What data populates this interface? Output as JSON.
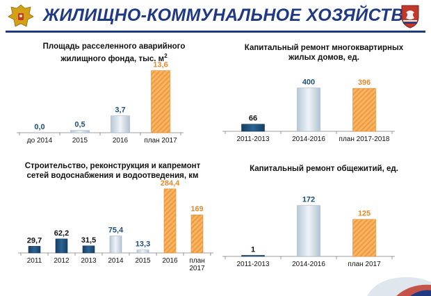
{
  "header": {
    "title": "ЖИЛИЩНО-КОММУНАЛЬНОЕ ХОЗЯЙСТВО"
  },
  "colors": {
    "navy": "#1f3a82",
    "dark_blue": "#1d4f7a",
    "light_blue": "#cdd9e3",
    "orange": "#f5a24a"
  },
  "icons": {
    "left": "russian-coat-of-arms-icon",
    "right": "crimea-coat-of-arms-icon"
  },
  "chart_data": [
    {
      "type": "bar",
      "title": "Площадь расселенного аварийного жилищного фонда, тыс. м²",
      "title_lines": [
        "Площадь расселенного аварийного",
        "жилищного фонда, тыс. м"
      ],
      "title_sup": "2",
      "categories": [
        "до 2014",
        "2015",
        "2016",
        "план 2017"
      ],
      "values": [
        0.0,
        0.5,
        3.7,
        13.6
      ],
      "value_labels": [
        "0,0",
        "0,5",
        "3,7",
        "13,6"
      ],
      "bar_colors": [
        "light",
        "light",
        "light",
        "orange"
      ],
      "ylim": [
        0,
        14
      ]
    },
    {
      "type": "bar",
      "title": "Капитальный ремонт многоквартирных жилых домов, ед.",
      "title_lines": [
        "Капитальный ремонт многоквартирных",
        "жилых домов, ед."
      ],
      "categories": [
        "2011-2013",
        "2014-2016",
        "план 2017-2018"
      ],
      "values": [
        66,
        400,
        396
      ],
      "value_labels": [
        "66",
        "400",
        "396"
      ],
      "bar_colors": [
        "dark",
        "light",
        "orange"
      ],
      "ylim": [
        0,
        410
      ]
    },
    {
      "type": "bar",
      "title": "Строительство, реконструкция и капремонт сетей водоснабжения и водоотведения, км",
      "title_lines": [
        "Строительство, реконструкция и капремонт",
        "сетей водоснабжения и водоотведения, км"
      ],
      "categories": [
        "2011",
        "2012",
        "2013",
        "2014",
        "2015",
        "2016",
        "план 2017"
      ],
      "category_lines": [
        [
          "2011"
        ],
        [
          "2012"
        ],
        [
          "2013"
        ],
        [
          "2014"
        ],
        [
          "2015"
        ],
        [
          "2016"
        ],
        [
          "план",
          "2017"
        ]
      ],
      "values": [
        29.7,
        62.2,
        31.5,
        75.4,
        13.3,
        284.4,
        169
      ],
      "value_labels": [
        "29,7",
        "62,2",
        "31,5",
        "75,4",
        "13,3",
        "284,4",
        "169"
      ],
      "bar_colors": [
        "dark",
        "dark",
        "dark",
        "light",
        "light",
        "orange",
        "orange"
      ],
      "ylim": [
        0,
        290
      ]
    },
    {
      "type": "bar",
      "title": "Капитальный ремонт общежитий, ед.",
      "title_lines": [
        "Капитальный ремонт общежитий, ед."
      ],
      "categories": [
        "2011-2013",
        "2014-2016",
        "план 2017"
      ],
      "values": [
        1,
        172,
        125
      ],
      "value_labels": [
        "1",
        "172",
        "125"
      ],
      "bar_colors": [
        "dark",
        "light",
        "orange"
      ],
      "ylim": [
        0,
        176
      ]
    }
  ]
}
